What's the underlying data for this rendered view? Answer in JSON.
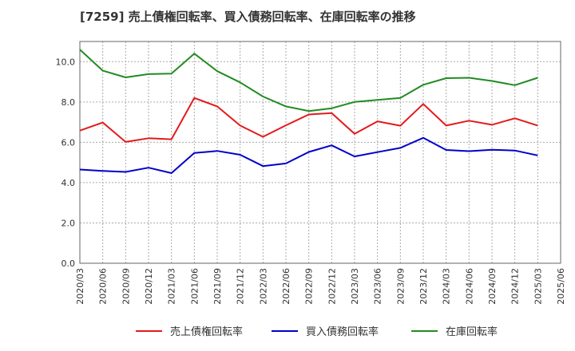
{
  "chart_data": {
    "type": "line",
    "title": "[7259]  売上債権回転率、買入債務回転率、在庫回転率の推移",
    "xlabel": "",
    "ylabel": "",
    "ylim": [
      0,
      11
    ],
    "yticks": [
      0.0,
      2.0,
      4.0,
      6.0,
      8.0,
      10.0
    ],
    "ytick_labels": [
      "0.0",
      "2.0",
      "4.0",
      "6.0",
      "8.0",
      "10.0"
    ],
    "grid": true,
    "legend_position": "bottom",
    "x": [
      "2020/03",
      "2020/06",
      "2020/09",
      "2020/12",
      "2021/03",
      "2021/06",
      "2021/09",
      "2021/12",
      "2022/03",
      "2022/06",
      "2022/09",
      "2022/12",
      "2023/03",
      "2023/06",
      "2023/09",
      "2023/12",
      "2024/03",
      "2024/06",
      "2024/09",
      "2024/12",
      "2025/03",
      "2025/06"
    ],
    "series": [
      {
        "name": "売上債権回転率",
        "color": "#e31a1c",
        "values": [
          6.58,
          6.98,
          6.02,
          6.2,
          6.15,
          8.2,
          7.78,
          6.83,
          6.27,
          6.84,
          7.38,
          7.45,
          6.42,
          7.04,
          6.82,
          7.9,
          6.83,
          7.07,
          6.87,
          7.19,
          6.83,
          null
        ]
      },
      {
        "name": "買入債務回転率",
        "color": "#0000cc",
        "values": [
          4.65,
          4.58,
          4.53,
          4.74,
          4.47,
          5.47,
          5.57,
          5.38,
          4.82,
          4.95,
          5.52,
          5.85,
          5.3,
          5.51,
          5.72,
          6.22,
          5.62,
          5.56,
          5.63,
          5.59,
          5.35,
          null
        ]
      },
      {
        "name": "在庫回転率",
        "color": "#228b22",
        "values": [
          10.6,
          9.55,
          9.22,
          9.38,
          9.41,
          10.4,
          9.53,
          8.97,
          8.27,
          7.78,
          7.55,
          7.69,
          8.0,
          8.1,
          8.2,
          8.85,
          9.18,
          9.2,
          9.04,
          8.83,
          9.2,
          null
        ]
      }
    ]
  }
}
